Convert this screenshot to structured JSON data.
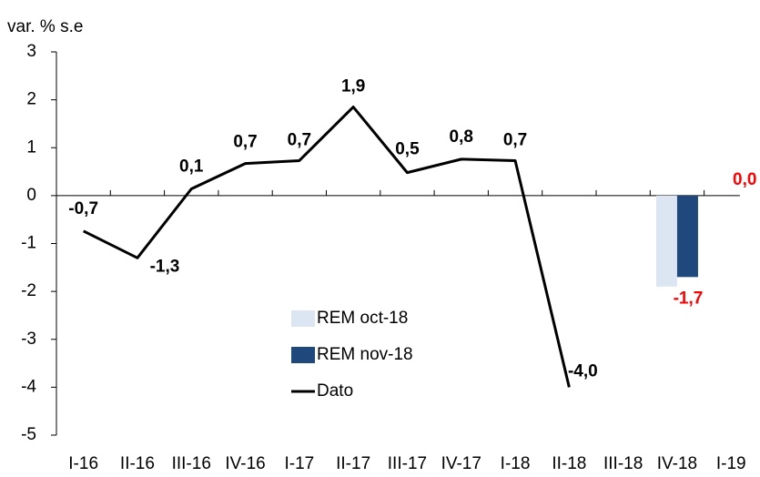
{
  "chart_data": {
    "type": "line",
    "title": "var. % s.e",
    "categories": [
      "I-16",
      "II-16",
      "III-16",
      "IV-16",
      "I-17",
      "II-17",
      "III-17",
      "IV-17",
      "I-18",
      "II-18",
      "III-18",
      "IV-18",
      "I-19"
    ],
    "ylim": [
      -5,
      3
    ],
    "yticks": [
      -5,
      -4,
      -3,
      -2,
      -1,
      0,
      1,
      2,
      3
    ],
    "legend": "center",
    "series": [
      {
        "name": "REM oct-18",
        "type": "bar",
        "color": "#dce6f2",
        "values": [
          null,
          null,
          null,
          null,
          null,
          null,
          null,
          null,
          null,
          null,
          null,
          -1.9,
          null
        ]
      },
      {
        "name": "REM nov-18",
        "type": "bar",
        "color": "#1f497d",
        "label_color": "#ff0000",
        "values": [
          null,
          null,
          null,
          null,
          null,
          null,
          null,
          null,
          null,
          null,
          null,
          -1.7,
          0.0
        ],
        "value_labels": [
          null,
          null,
          null,
          null,
          null,
          null,
          null,
          null,
          null,
          null,
          null,
          "-1,7",
          "0,0"
        ]
      },
      {
        "name": "Dato",
        "type": "line",
        "color": "#000000",
        "values": [
          -0.74,
          -1.3,
          0.14,
          0.67,
          0.73,
          1.85,
          0.48,
          0.76,
          0.73,
          -4.0,
          null,
          null,
          null
        ],
        "value_labels": [
          "-0,7",
          "-1,3",
          "0,1",
          "0,7",
          "0,7",
          "1,9",
          "0,5",
          "0,8",
          "0,7",
          "-4,0",
          null,
          null,
          null
        ]
      }
    ]
  }
}
